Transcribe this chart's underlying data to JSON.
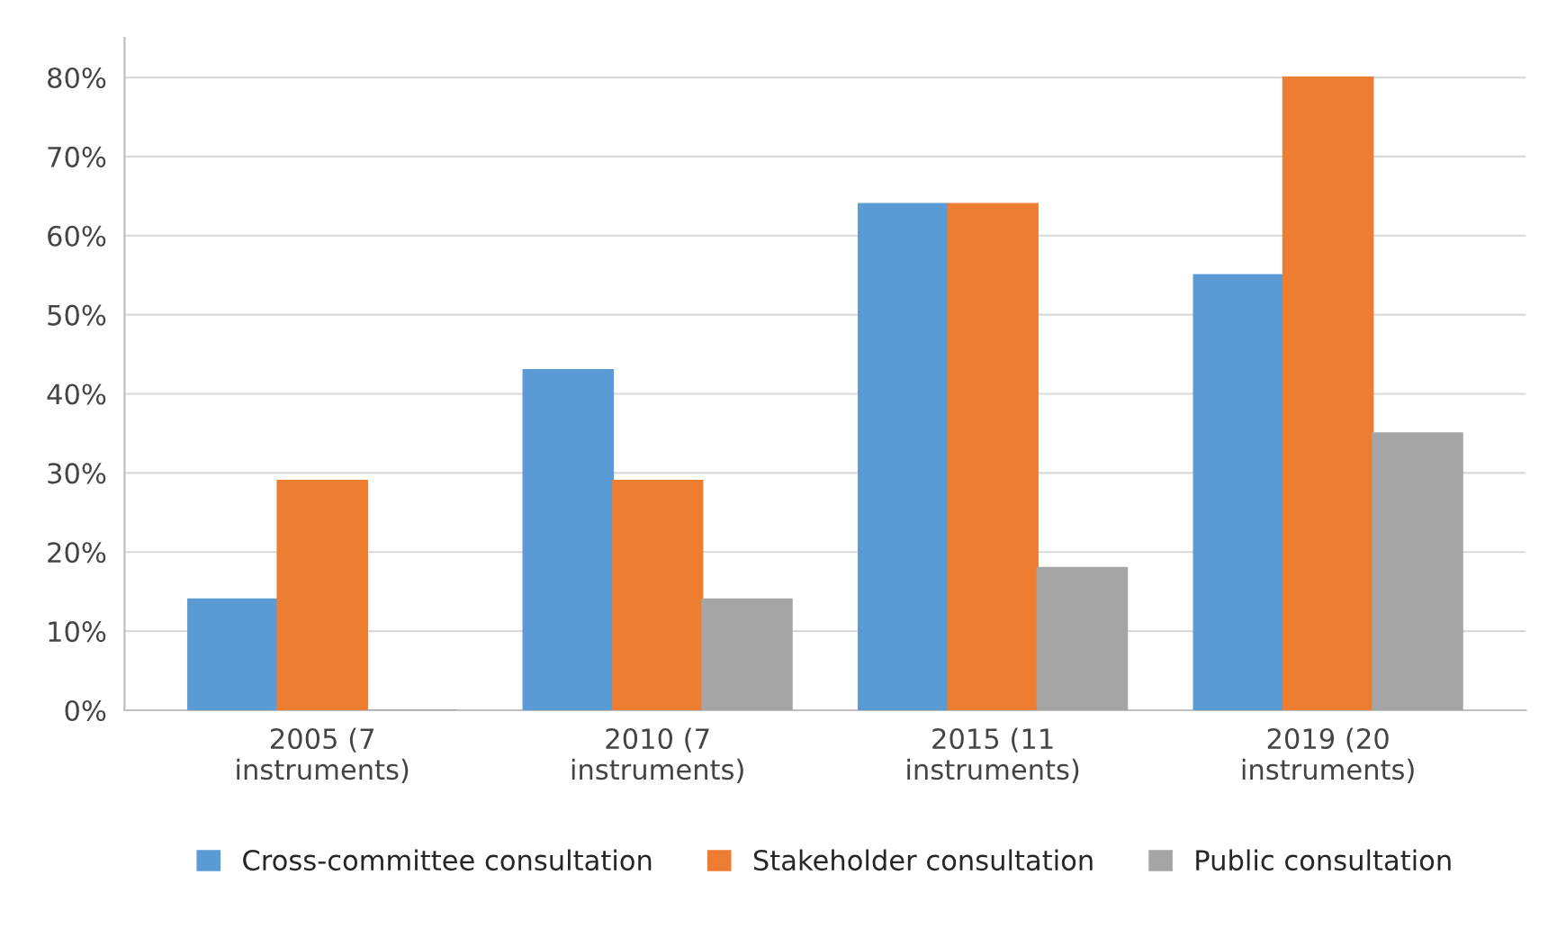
{
  "chart_data": {
    "type": "bar",
    "categories": [
      "2005 (7\ninstruments)",
      "2010 (7\ninstruments)",
      "2015 (11\ninstruments)",
      "2019 (20\ninstruments)"
    ],
    "series": [
      {
        "name": "Cross-committee consultation",
        "color": "#5b9bd5",
        "values": [
          14,
          43,
          64,
          55
        ]
      },
      {
        "name": "Stakeholder consultation",
        "color": "#ed7d31",
        "values": [
          29,
          29,
          64,
          80
        ]
      },
      {
        "name": "Public consultation",
        "color": "#a5a5a5",
        "values": [
          0,
          14,
          18,
          35
        ]
      }
    ],
    "ylim": [
      0,
      85
    ],
    "yticks": [
      {
        "value": 0,
        "label": "0%"
      },
      {
        "value": 10,
        "label": "10%"
      },
      {
        "value": 20,
        "label": "20%"
      },
      {
        "value": 30,
        "label": "30%"
      },
      {
        "value": 40,
        "label": "40%"
      },
      {
        "value": 50,
        "label": "50%"
      },
      {
        "value": 60,
        "label": "60%"
      },
      {
        "value": 70,
        "label": "70%"
      },
      {
        "value": 80,
        "label": "80%"
      }
    ],
    "grid": "y",
    "legend": "bottom"
  }
}
